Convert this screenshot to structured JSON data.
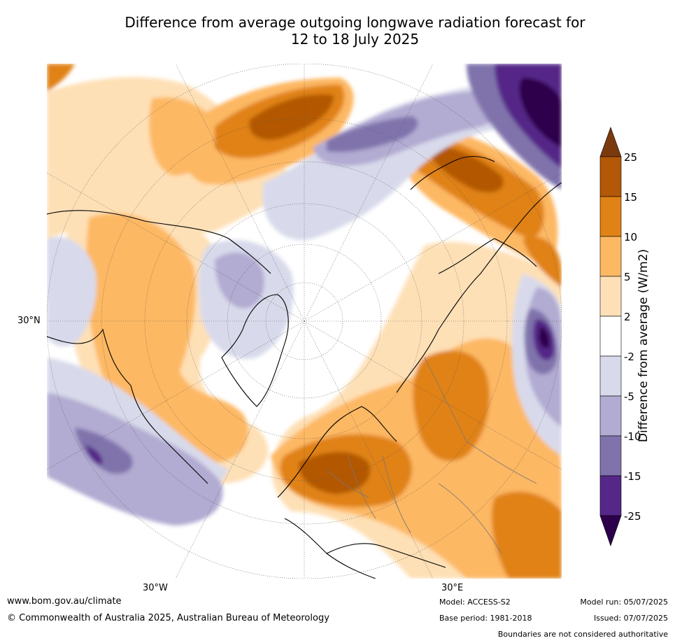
{
  "title_line1": "Difference from average outgoing longwave radiation forecast for",
  "title_line2": "12 to 18 July 2025",
  "axis_labels": {
    "lat": "30°N",
    "lon_west": "30°W",
    "lon_east": "30°E"
  },
  "colorbar": {
    "label": "Difference from average (W/m2)",
    "ticks": [
      "25",
      "15",
      "10",
      "5",
      "2",
      "-2",
      "-5",
      "-10",
      "-15",
      "-25"
    ],
    "colors": {
      "above_25": "#7b3a0d",
      "15_25": "#b35806",
      "10_15": "#e08214",
      "5_10": "#fdb863",
      "2_5": "#fee0b6",
      "neutral": "#ffffff",
      "m5_m2": "#d8daeb",
      "m10_m5": "#b2abd2",
      "m15_m10": "#8073ac",
      "m25_m15": "#542788",
      "below_m25": "#2d004b"
    }
  },
  "footer": {
    "website": "www.bom.gov.au/climate",
    "copyright": "© Commonwealth of Australia 2025, Australian Bureau of Meteorology",
    "model": "Model: ACCESS-S2",
    "base_period": "Base period: 1981-2018",
    "model_run": "Model run: 05/07/2025",
    "issued": "Issued: 07/07/2025",
    "disclaimer": "Boundaries are not considered authoritative"
  }
}
